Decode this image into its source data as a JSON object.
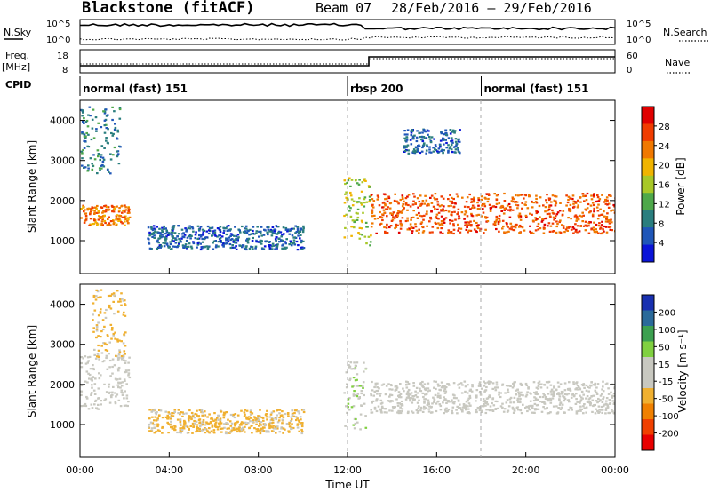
{
  "header": {
    "station": "Blackstone (fitACF)",
    "beam": "Beam 07",
    "dates": "28/Feb/2016 – 29/Feb/2016"
  },
  "left_labels": {
    "nsky": "N.Sky",
    "freq": "Freq.",
    "mhz": "[MHz]",
    "cpid": "CPID"
  },
  "right_labels": {
    "nsearch": "N.Search",
    "nave": "Nave"
  },
  "noise_panel": {
    "left_ticks": [
      "10^5",
      "10^0"
    ],
    "right_ticks": [
      "10^5",
      "10^0"
    ]
  },
  "freq_panel": {
    "left_ticks": [
      "18",
      "8"
    ],
    "right_ticks": [
      "60",
      "0"
    ]
  },
  "cpid_segments": [
    {
      "label": "normal (fast) 151",
      "start_h": 0
    },
    {
      "label": "rbsp 200",
      "start_h": 12
    },
    {
      "label": "normal (fast) 151",
      "start_h": 18
    }
  ],
  "x_axis": {
    "label": "Time UT",
    "ticks": [
      "00:00",
      "04:00",
      "08:00",
      "12:00",
      "16:00",
      "20:00",
      "00:00"
    ]
  },
  "panels": {
    "power": {
      "ylabel": "Slant Range [km]",
      "cbar_label": "Power [dB]",
      "cbar_ticks": [
        "28",
        "24",
        "20",
        "16",
        "12",
        "8",
        "4"
      ]
    },
    "velocity": {
      "ylabel": "Slant Range [km]",
      "cbar_label": "Velocity [m s⁻¹]",
      "cbar_ticks": [
        "200",
        "100",
        "50",
        "15",
        "-15",
        "-50",
        "-100",
        "-200"
      ]
    }
  },
  "chart_data": [
    {
      "type": "heatmap",
      "title": "Power",
      "xlabel": "Time UT",
      "ylabel": "Slant Range [km]",
      "xlim_hours": [
        0,
        24
      ],
      "ylim_km": [
        180,
        4500
      ],
      "yticks": [
        1000,
        2000,
        3000,
        4000
      ],
      "colorbar": {
        "label": "Power [dB]",
        "range": [
          0,
          30
        ],
        "ticks": [
          4,
          8,
          12,
          16,
          20,
          24,
          28
        ],
        "colors": [
          "#0a14d8",
          "#1f56b8",
          "#2a7e7e",
          "#4ea84a",
          "#a8c828",
          "#f0b400",
          "#f07800",
          "#f03c00",
          "#e00000"
        ]
      },
      "features": [
        {
          "t": [
            0,
            2.2
          ],
          "range_km": [
            1400,
            1900
          ],
          "power_db": 22,
          "desc": "rising band"
        },
        {
          "t": [
            0,
            1.8
          ],
          "range_km": [
            2700,
            4400
          ],
          "power_db": 8
        },
        {
          "t": [
            3,
            10
          ],
          "range_km": [
            800,
            1400
          ],
          "power_db": 6
        },
        {
          "t": [
            11.8,
            13
          ],
          "range_km": [
            900,
            2600
          ],
          "power_db": 14
        },
        {
          "t": [
            13,
            24
          ],
          "range_km": [
            1200,
            2200
          ],
          "power_db": 24,
          "desc": "main band"
        },
        {
          "t": [
            14.5,
            17
          ],
          "range_km": [
            3200,
            3800
          ],
          "power_db": 6
        }
      ]
    },
    {
      "type": "heatmap",
      "title": "Velocity",
      "xlabel": "Time UT",
      "ylabel": "Slant Range [km]",
      "xlim_hours": [
        0,
        24
      ],
      "ylim_km": [
        180,
        4500
      ],
      "yticks": [
        1000,
        2000,
        3000,
        4000
      ],
      "colorbar": {
        "label": "Velocity [m s⁻¹]",
        "range": [
          -250,
          250
        ],
        "ticks": [
          200,
          100,
          50,
          15,
          -15,
          -50,
          -100,
          -200
        ],
        "colors": [
          "#e80000",
          "#f04000",
          "#f08000",
          "#f0b030",
          "#c8c8c0",
          "#c8c8c0",
          "#80d040",
          "#3ca050",
          "#2a6a9a",
          "#1830b0"
        ]
      },
      "features": [
        {
          "t": [
            0,
            2.2
          ],
          "range_km": [
            1400,
            2800
          ],
          "velocity": 0,
          "desc": "ground scatter"
        },
        {
          "t": [
            0.5,
            2
          ],
          "range_km": [
            2600,
            4400
          ],
          "velocity": -60
        },
        {
          "t": [
            3,
            10
          ],
          "range_km": [
            800,
            1400
          ],
          "velocity": -60
        },
        {
          "t": [
            11.8,
            12.8
          ],
          "range_km": [
            900,
            2600
          ],
          "velocity": 40
        },
        {
          "t": [
            13,
            24
          ],
          "range_km": [
            1300,
            2100
          ],
          "velocity": 0,
          "desc": "ground scatter"
        }
      ]
    }
  ]
}
